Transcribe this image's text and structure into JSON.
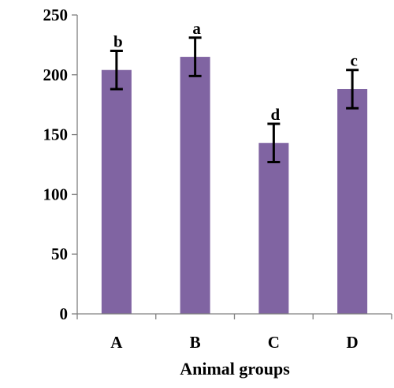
{
  "chart_data": {
    "type": "bar",
    "title": "",
    "xlabel": "Animal groups",
    "ylabel": "",
    "categories": [
      "A",
      "B",
      "C",
      "D"
    ],
    "values": [
      204,
      215,
      143,
      188
    ],
    "errors": [
      16,
      16,
      16,
      16
    ],
    "annotations": [
      "b",
      "a",
      "d",
      "c"
    ],
    "ylim": [
      0,
      250
    ],
    "yticks": [
      0,
      50,
      100,
      150,
      200,
      250
    ],
    "grid": false,
    "bar_color": "#8064A2",
    "error_bar_color": "#000000"
  }
}
